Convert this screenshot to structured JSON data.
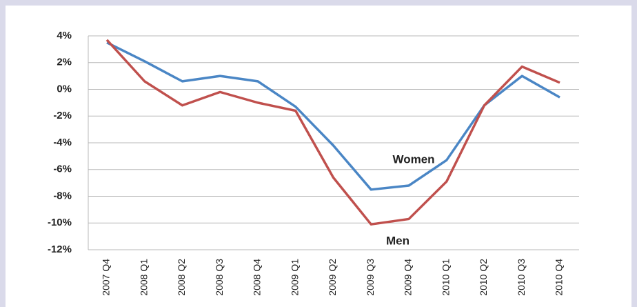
{
  "chart_data": {
    "type": "line",
    "categories": [
      "2007 Q4",
      "2008 Q1",
      "2008 Q2",
      "2008 Q3",
      "2008 Q4",
      "2009 Q1",
      "2009 Q2",
      "2009 Q3",
      "2009 Q4",
      "2010 Q1",
      "2010 Q2",
      "2010 Q3",
      "2010 Q4"
    ],
    "series": [
      {
        "name": "Women",
        "color": "#4a86c5",
        "values": [
          3.5,
          2.1,
          0.6,
          1.0,
          0.6,
          -1.3,
          -4.2,
          -7.5,
          -7.2,
          -5.3,
          -1.2,
          1.0,
          -0.6
        ]
      },
      {
        "name": "Men",
        "color": "#c0504d",
        "values": [
          3.7,
          0.6,
          -1.2,
          -0.2,
          -1.0,
          -1.6,
          -6.6,
          -10.1,
          -9.7,
          -6.9,
          -1.2,
          1.7,
          0.5
        ]
      }
    ],
    "ylim": [
      -12,
      4
    ],
    "yticks": [
      {
        "value": 4,
        "label": "4%"
      },
      {
        "value": 2,
        "label": "2%"
      },
      {
        "value": 0,
        "label": "0%"
      },
      {
        "value": -2,
        "label": "-2%"
      },
      {
        "value": -4,
        "label": "-4%"
      },
      {
        "value": -6,
        "label": "-6%"
      },
      {
        "value": -8,
        "label": "-8%"
      },
      {
        "value": -10,
        "label": "-10%"
      },
      {
        "value": -12,
        "label": "-12%"
      }
    ],
    "grid": true
  }
}
